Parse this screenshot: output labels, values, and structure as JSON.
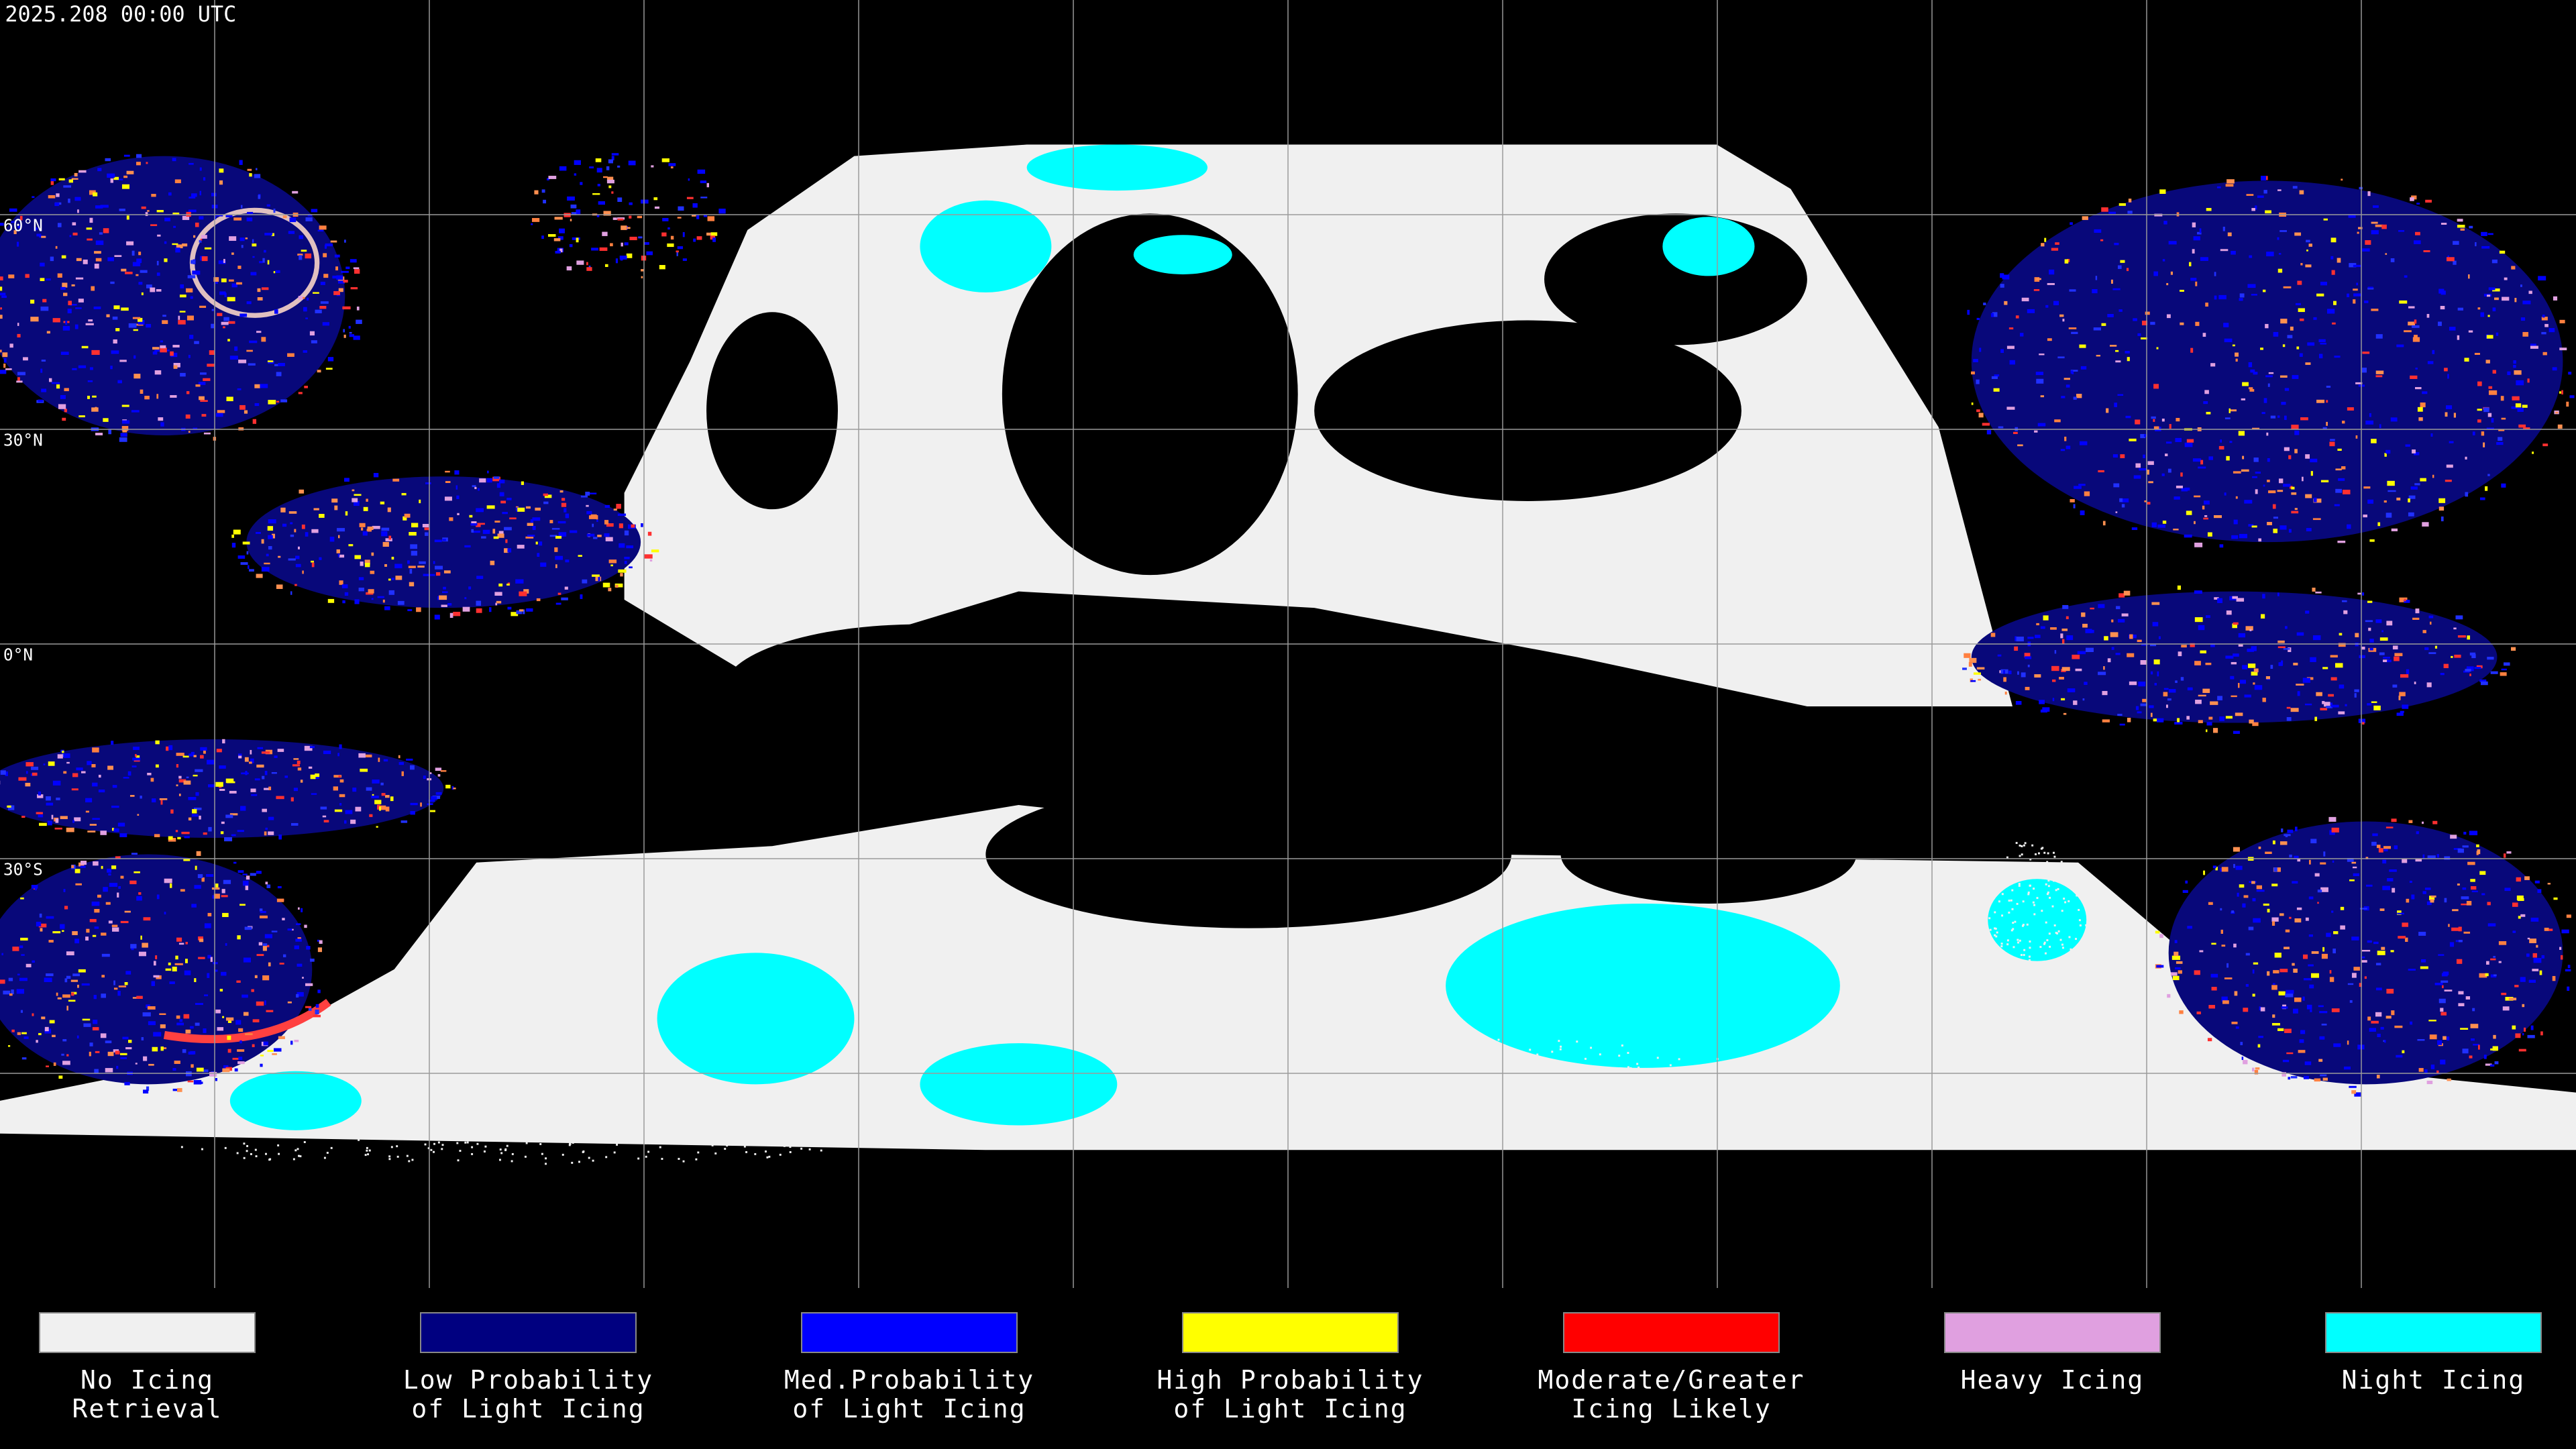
{
  "header": {
    "timestamp": "2025.208 00:00 UTC"
  },
  "map": {
    "latitude_labels": [
      "60°N",
      "30°N",
      "0°N",
      "30°S"
    ]
  },
  "legend": {
    "items": [
      {
        "lines": [
          "No Icing",
          "Retrieval"
        ],
        "color": "#f0f0f0"
      },
      {
        "lines": [
          "Low Probability",
          "of Light Icing"
        ],
        "color": "#000080"
      },
      {
        "lines": [
          "Med.Probability",
          "of Light Icing"
        ],
        "color": "#0000ff"
      },
      {
        "lines": [
          "High Probability",
          "of Light Icing"
        ],
        "color": "#ffff00"
      },
      {
        "lines": [
          "Moderate/Greater",
          "Icing Likely"
        ],
        "color": "#ff0000"
      },
      {
        "lines": [
          "Heavy Icing"
        ],
        "color": "#e0a0e0"
      },
      {
        "lines": [
          "Night Icing"
        ],
        "color": "#00ffff"
      }
    ]
  }
}
